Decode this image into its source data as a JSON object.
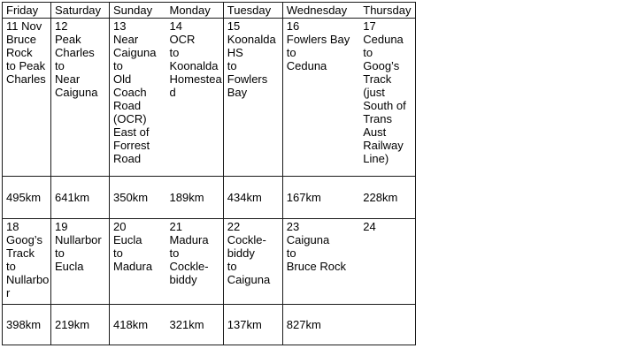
{
  "table": {
    "headers": [
      "Friday",
      "Saturday",
      "Sunday",
      "Monday",
      "Tuesday",
      "Wednesday",
      "Thursday"
    ],
    "week1": [
      "11 Nov\nBruce\nRock\nto Peak\nCharles",
      "12\nPeak\nCharles\nto\nNear\nCaiguna",
      "13\nNear\nCaiguna\nto\nOld\nCoach\nRoad\n(OCR)\nEast of\nForrest\nRoad",
      "14\nOCR\nto\nKoonalda\nHomestea\nd",
      "15\nKoonalda\nHS\nto\nFowlers\nBay",
      "16\nFowlers Bay\nto\nCeduna",
      "17\nCeduna\nto\nGoog’s\nTrack\n(just\nSouth of\nTrans\nAust\nRailway\nLine)"
    ],
    "km1": [
      "495km",
      "641km",
      "350km",
      "189km",
      "434km",
      "167km",
      "228km"
    ],
    "week2": [
      "18\nGoog’s\nTrack\nto\nNullarbo\nr",
      "19\nNullarbor\nto\nEucla",
      "20\nEucla\nto\nMadura",
      "21\nMadura\nto\nCockle-\nbiddy",
      "22\nCockle-\nbiddy\nto\nCaiguna",
      "23\nCaiguna\nto\nBruce Rock",
      "24"
    ],
    "km2": [
      "398km",
      "219km",
      "418km",
      "321km",
      "137km",
      "827km",
      ""
    ]
  }
}
